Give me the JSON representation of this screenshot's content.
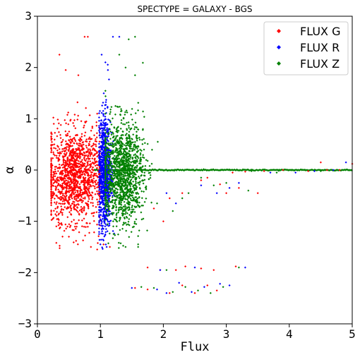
{
  "chart_data": {
    "type": "scatter",
    "title": "SPECTYPE = GALAXY - BGS",
    "xlabel": "Flux",
    "ylabel": "α",
    "xlim": [
      0,
      5
    ],
    "ylim": [
      -3,
      3
    ],
    "xticks": [
      "0",
      "1",
      "2",
      "3",
      "4",
      "5"
    ],
    "yticks": [
      "3",
      "2",
      "1",
      "0",
      "−1",
      "−2",
      "−3"
    ],
    "grid": false,
    "legend_position": "top-right",
    "series": [
      {
        "name": "FLUX G",
        "color": "#ff0000",
        "clusters": [
          {
            "x_center": 0.58,
            "x_spread": 0.22,
            "y_center": -0.1,
            "y_spread": 0.45,
            "count": 1400
          }
        ],
        "points": [
          [
            0.75,
            2.6
          ],
          [
            0.8,
            2.6
          ],
          [
            0.35,
            2.25
          ],
          [
            0.45,
            1.95
          ],
          [
            0.65,
            1.85
          ],
          [
            0.3,
            -1.1
          ],
          [
            0.5,
            -1.3
          ],
          [
            0.85,
            -1.5
          ],
          [
            0.95,
            -1.55
          ],
          [
            1.05,
            -1.45
          ],
          [
            1.15,
            -1.5
          ],
          [
            1.55,
            -2.3
          ],
          [
            1.75,
            -2.33
          ],
          [
            2.1,
            -2.4
          ],
          [
            2.3,
            -2.25
          ],
          [
            2.5,
            -2.4
          ],
          [
            2.7,
            -2.25
          ],
          [
            2.85,
            -2.35
          ],
          [
            1.75,
            -1.9
          ],
          [
            1.95,
            -1.95
          ],
          [
            2.2,
            -1.95
          ],
          [
            2.35,
            -1.88
          ],
          [
            2.6,
            -1.92
          ],
          [
            2.8,
            -1.95
          ],
          [
            3.15,
            -1.88
          ],
          [
            2.0,
            -1.0
          ],
          [
            1.85,
            -0.75
          ],
          [
            2.1,
            -0.55
          ],
          [
            2.3,
            -0.45
          ],
          [
            2.7,
            -0.15
          ],
          [
            3.1,
            -0.05
          ],
          [
            3.3,
            -0.03
          ],
          [
            3.6,
            -0.02
          ],
          [
            3.9,
            0.0
          ],
          [
            4.3,
            -0.02
          ],
          [
            4.5,
            0.15
          ],
          [
            4.6,
            0.0
          ],
          [
            4.8,
            0.0
          ],
          [
            5.0,
            0.12
          ],
          [
            3.2,
            -0.35
          ],
          [
            3.5,
            -0.45
          ],
          [
            2.6,
            -0.2
          ],
          [
            2.9,
            -0.28
          ],
          [
            3.0,
            -0.45
          ],
          [
            0.95,
            1.1
          ]
        ]
      },
      {
        "name": "FLUX R",
        "color": "#0000ff",
        "clusters": [
          {
            "x_center": 1.07,
            "x_spread": 0.055,
            "y_center": -0.05,
            "y_spread": 0.55,
            "count": 900
          }
        ],
        "points": [
          [
            1.2,
            2.6
          ],
          [
            1.3,
            2.6
          ],
          [
            1.02,
            2.25
          ],
          [
            1.08,
            2.1
          ],
          [
            1.12,
            1.95
          ],
          [
            1.0,
            -1.45
          ],
          [
            1.1,
            -1.5
          ],
          [
            1.5,
            -2.3
          ],
          [
            1.9,
            -2.33
          ],
          [
            2.05,
            -2.4
          ],
          [
            2.25,
            -2.2
          ],
          [
            2.45,
            -2.38
          ],
          [
            2.65,
            -2.28
          ],
          [
            2.9,
            -2.22
          ],
          [
            3.05,
            -2.25
          ],
          [
            1.95,
            -1.95
          ],
          [
            2.5,
            -1.9
          ],
          [
            3.3,
            -1.9
          ],
          [
            2.2,
            -0.65
          ],
          [
            2.05,
            -0.45
          ],
          [
            2.6,
            -0.3
          ],
          [
            3.2,
            -0.25
          ],
          [
            3.7,
            -0.05
          ],
          [
            4.1,
            -0.05
          ],
          [
            4.4,
            -0.02
          ],
          [
            4.7,
            0.0
          ],
          [
            4.9,
            0.15
          ],
          [
            3.05,
            -0.35
          ],
          [
            2.85,
            -0.45
          ]
        ]
      },
      {
        "name": "FLUX Z",
        "color": "#008000",
        "clusters": [
          {
            "x_center": 1.35,
            "x_spread": 0.17,
            "y_center": -0.05,
            "y_spread": 0.5,
            "count": 1300
          }
        ],
        "points": [
          [
            1.55,
            2.6
          ],
          [
            1.45,
            2.55
          ],
          [
            1.3,
            2.25
          ],
          [
            1.4,
            2.0
          ],
          [
            1.55,
            1.85
          ],
          [
            1.6,
            -1.5
          ],
          [
            1.4,
            -1.5
          ],
          [
            1.65,
            -2.28
          ],
          [
            1.85,
            -2.3
          ],
          [
            2.15,
            -2.38
          ],
          [
            2.35,
            -2.28
          ],
          [
            2.55,
            -2.35
          ],
          [
            2.75,
            -2.4
          ],
          [
            2.95,
            -2.28
          ],
          [
            3.2,
            -1.9
          ],
          [
            2.05,
            -1.95
          ],
          [
            2.3,
            -0.55
          ],
          [
            2.15,
            -0.8
          ],
          [
            1.9,
            -0.65
          ],
          [
            2.6,
            -0.15
          ],
          [
            2.8,
            -0.3
          ],
          [
            3.0,
            -0.25
          ],
          [
            3.4,
            -0.02
          ],
          [
            3.8,
            -0.05
          ],
          [
            4.2,
            0.0
          ],
          [
            4.5,
            -0.02
          ],
          [
            4.95,
            0.0
          ],
          [
            3.35,
            -0.4
          ],
          [
            2.4,
            -0.45
          ]
        ]
      }
    ],
    "reference_band": {
      "y": 0,
      "x_range": [
        0.9,
        5.0
      ],
      "color": "#008000"
    }
  }
}
